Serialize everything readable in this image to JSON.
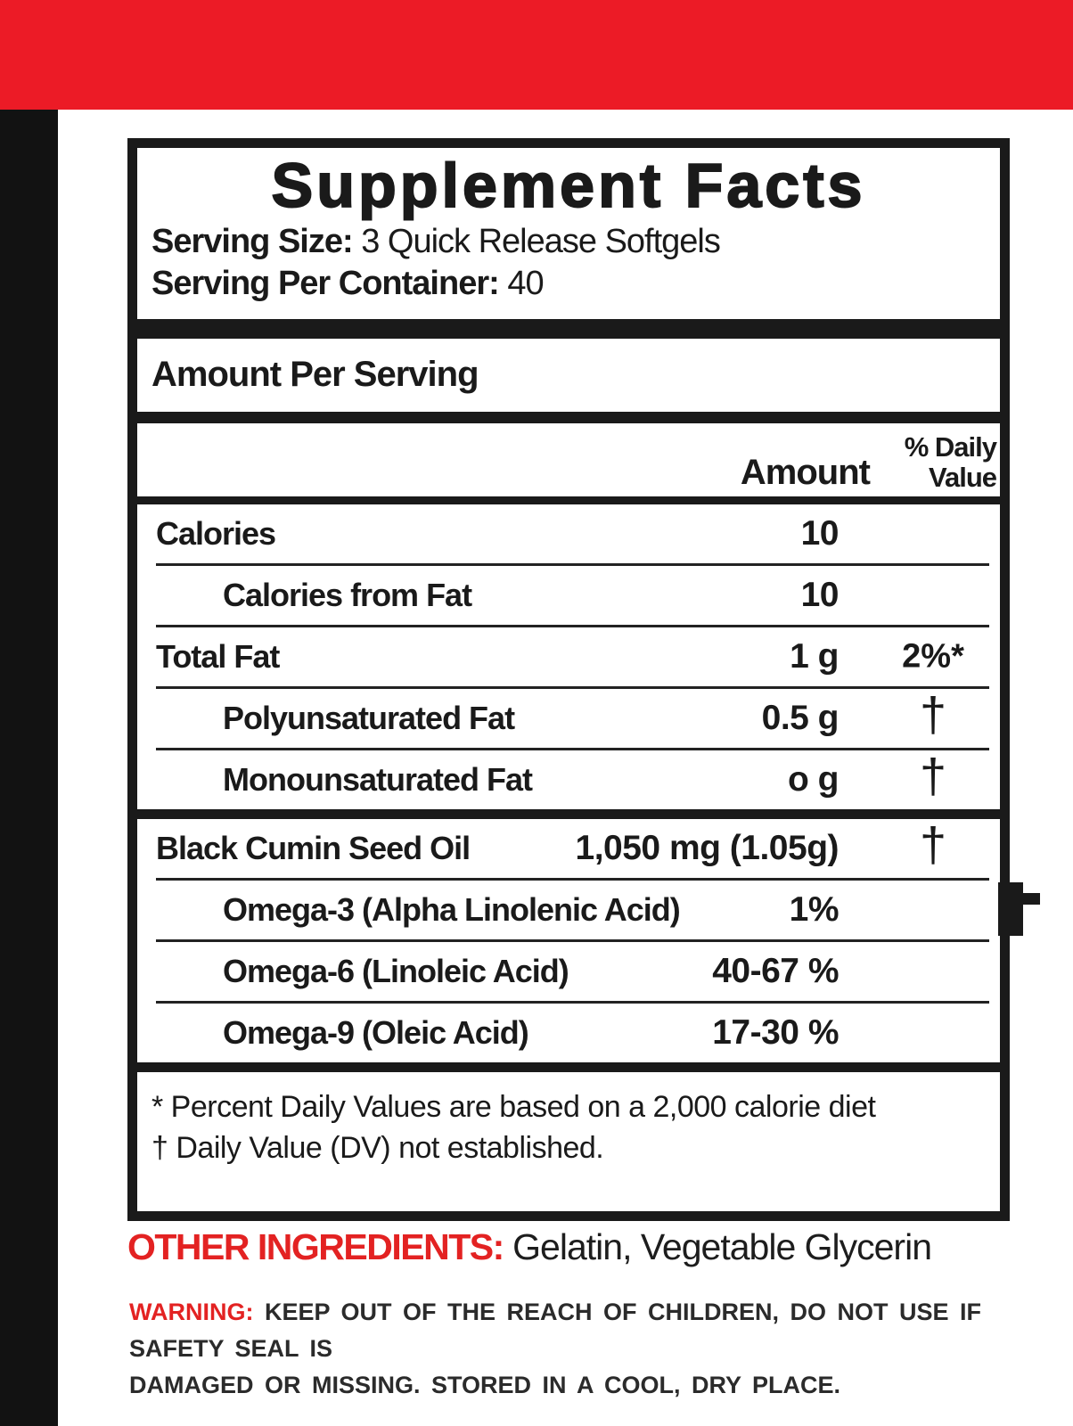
{
  "colors": {
    "top_bar_red": "#ec1b26",
    "side_bar_black": "#121212",
    "accent_text_red": "#e32222",
    "ink": "#1a1a1a"
  },
  "label": {
    "title": "Supplement Facts",
    "serving_size_label": "Serving Size:",
    "serving_size_value": "3 Quick Release Softgels",
    "servings_per_container_label": "Serving Per Container:",
    "servings_per_container_value": "40",
    "amount_per_serving": "Amount Per Serving",
    "columns": {
      "amount": "Amount",
      "dv_line1": "% Daily",
      "dv_line2": "Value"
    },
    "rows": [
      {
        "name": "Calories",
        "indent": false,
        "amount": "10",
        "dv": "",
        "sep": "thin"
      },
      {
        "name": "Calories from Fat",
        "indent": true,
        "amount": "10",
        "dv": "",
        "sep": "thin"
      },
      {
        "name": "Total Fat",
        "indent": false,
        "amount": "1 g",
        "dv": "2%*",
        "sep": "thin"
      },
      {
        "name": "Polyunsaturated Fat",
        "indent": true,
        "amount": "0.5 g",
        "dv": "†",
        "sep": "thin"
      },
      {
        "name": "Monounsaturated Fat",
        "indent": true,
        "amount": "o g",
        "dv": "†",
        "sep": "thick"
      },
      {
        "name": "Black Cumin Seed Oil",
        "indent": false,
        "amount": "1,050 mg (1.05g)",
        "dv": "†",
        "sep": "thin"
      },
      {
        "name": "Omega-3 (Alpha Linolenic Acid)",
        "indent": true,
        "amount": "1%",
        "dv": "",
        "sep": "thin"
      },
      {
        "name": "Omega-6 (Linoleic Acid)",
        "indent": true,
        "amount": "40-67 %",
        "dv": "",
        "sep": "thin"
      },
      {
        "name": "Omega-9 (Oleic Acid)",
        "indent": true,
        "amount": "17-30 %",
        "dv": "",
        "sep": "thick"
      }
    ],
    "footnote_dv": "* Percent Daily Values are based on a 2,000 calorie diet",
    "footnote_dagger": "† Daily Value (DV) not established."
  },
  "other_ingredients": {
    "label": "OTHER INGREDIENTS:",
    "value": "Gelatin, Vegetable Glycerin"
  },
  "warning": {
    "label": "WARNING:",
    "line1": "KEEP OUT OF THE REACH OF CHILDREN, DO NOT USE IF SAFETY SEAL IS",
    "line2": "DAMAGED OR MISSING. STORED IN A COOL, DRY PLACE."
  }
}
